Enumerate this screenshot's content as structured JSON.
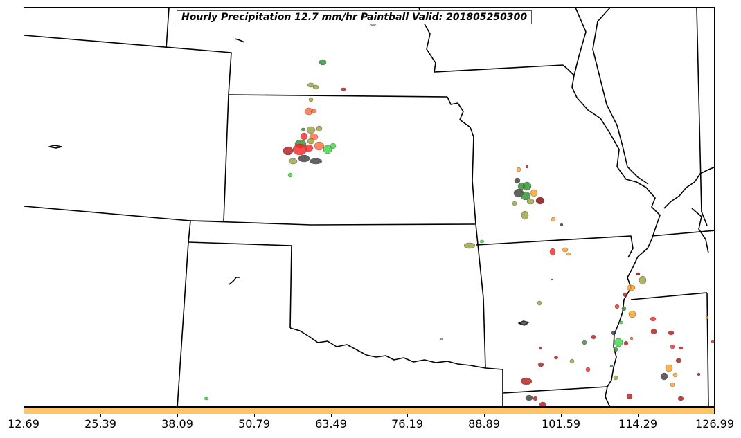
{
  "title": "Hourly Precipitation 12.7 mm/hr Paintball Valid: 201805250300",
  "colorbar": {
    "color": "#ffc466",
    "ticks": [
      "12.69",
      "25.39",
      "38.09",
      "50.79",
      "63.49",
      "76.19",
      "88.89",
      "101.59",
      "114.29",
      "126.99"
    ]
  },
  "paintball_colors": [
    "#2e8b2e",
    "#9aa03a",
    "#ff6a3a",
    "#ff1f1f",
    "#3a3a3a",
    "#b01818",
    "#3ed63e",
    "#ff9f1a",
    "#8b0000"
  ]
}
